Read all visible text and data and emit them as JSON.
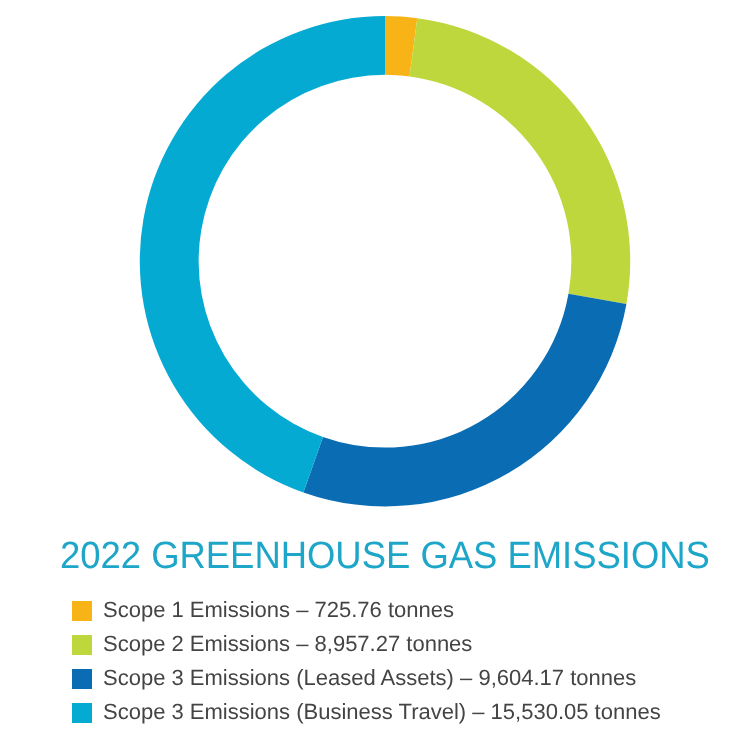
{
  "chart_data": {
    "type": "donut",
    "title": "2022 GREENHOUSE GAS EMISSIONS",
    "categories": [
      "Scope 1 Emissions – 725.76 tonnes",
      "Scope 2 Emissions – 8,957.27 tonnes",
      "Scope 3 Emissions (Leased Assets) – 9,604.17 tonnes",
      "Scope 3 Emissions (Business Travel) – 15,530.05 tonnes"
    ],
    "values": [
      2.1,
      25.7,
      27.6,
      44.6
    ],
    "colors": [
      "#f8b416",
      "#bdd73d",
      "#0a6db4",
      "#05aad3"
    ],
    "legend": "bottom"
  }
}
